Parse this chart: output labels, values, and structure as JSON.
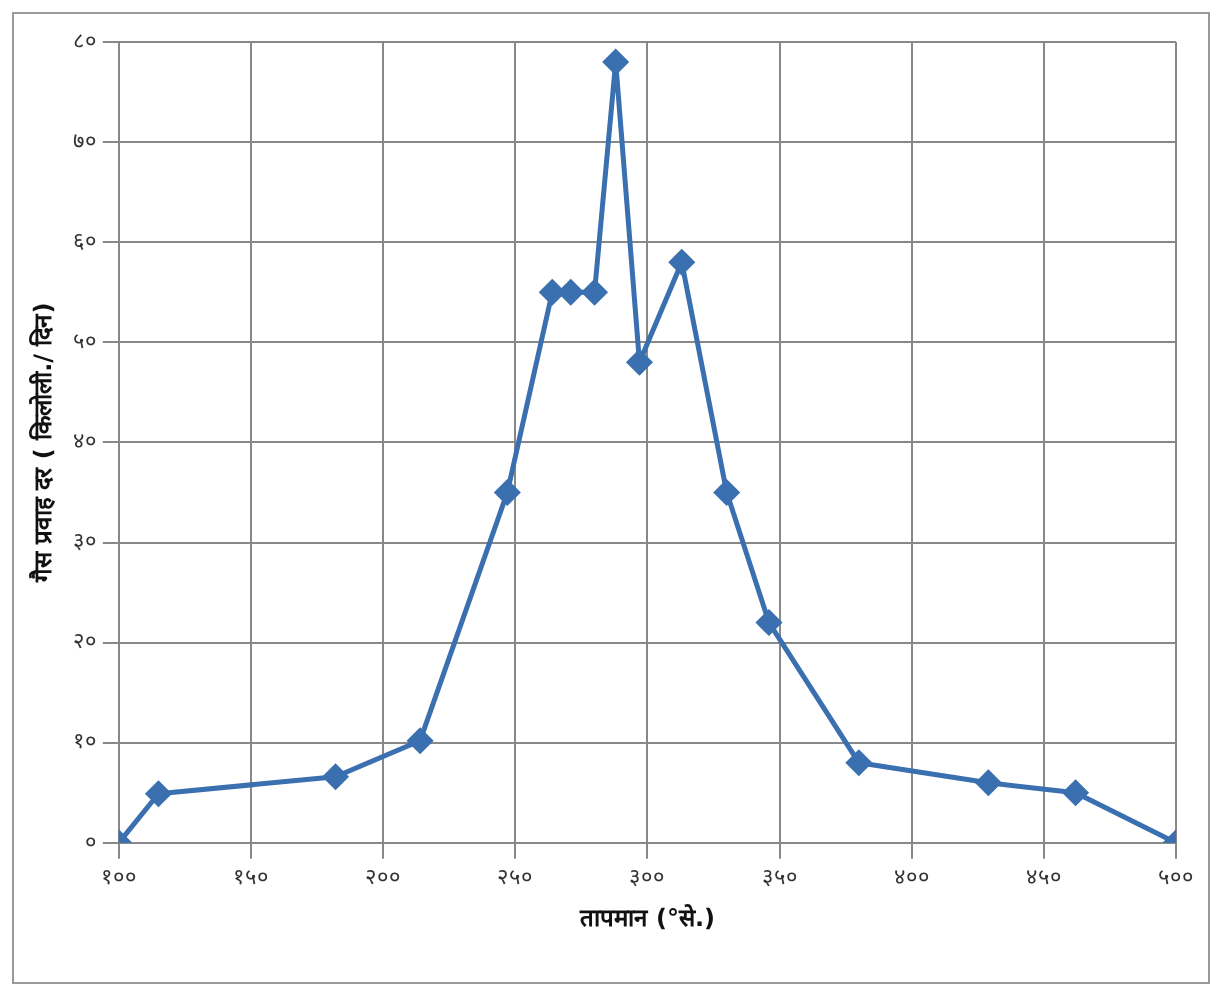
{
  "chart_data": {
    "type": "line",
    "xlabel": "तापमान (°से.)",
    "ylabel": "गैस प्रवाह दर ( किलोली./ दिन)",
    "x": [
      100,
      115,
      182,
      214,
      247,
      264,
      271,
      280,
      288,
      297,
      313,
      330,
      346,
      380,
      429,
      462,
      500
    ],
    "series": [
      {
        "color": "#3a6fb0",
        "values": [
          0,
          4.9,
          6.6,
          10.2,
          35,
          55,
          55,
          55,
          78,
          48,
          58,
          35,
          22,
          8,
          6,
          5,
          0
        ]
      }
    ],
    "xlim": [
      100,
      500
    ],
    "xticks": [
      {
        "value": 100,
        "label": "१००"
      },
      {
        "value": 150,
        "label": "१५०"
      },
      {
        "value": 200,
        "label": "२००"
      },
      {
        "value": 250,
        "label": "२५०"
      },
      {
        "value": 300,
        "label": "३००"
      },
      {
        "value": 350,
        "label": "३५०"
      },
      {
        "value": 400,
        "label": "४००"
      },
      {
        "value": 450,
        "label": "४५०"
      },
      {
        "value": 500,
        "label": "५००"
      }
    ],
    "ylim": [
      0,
      80
    ],
    "yticks": [
      {
        "value": 0,
        "label": "०"
      },
      {
        "value": 10,
        "label": "१०"
      },
      {
        "value": 20,
        "label": "२०"
      },
      {
        "value": 30,
        "label": "३०"
      },
      {
        "value": 40,
        "label": "४०"
      },
      {
        "value": 50,
        "label": "५०"
      },
      {
        "value": 60,
        "label": "६०"
      },
      {
        "value": 70,
        "label": "७०"
      },
      {
        "value": 80,
        "label": "८०"
      }
    ],
    "grid": true,
    "legend": false,
    "marker": "diamond",
    "line_style": "solid"
  }
}
